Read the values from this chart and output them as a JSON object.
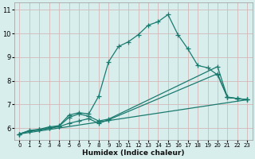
{
  "xlabel": "Humidex (Indice chaleur)",
  "bg_color": "#d8eeed",
  "grid_color": "#c8dede",
  "line_color": "#1a7a6e",
  "xlim": [
    -0.5,
    23.5
  ],
  "ylim": [
    5.5,
    11.3
  ],
  "xticks": [
    0,
    1,
    2,
    3,
    4,
    5,
    6,
    7,
    8,
    9,
    10,
    11,
    12,
    13,
    14,
    15,
    16,
    17,
    18,
    19,
    20,
    21,
    22,
    23
  ],
  "yticks": [
    6,
    7,
    8,
    9,
    10,
    11
  ],
  "series1_x": [
    0,
    1,
    2,
    3,
    4,
    5,
    6,
    7,
    8,
    9,
    10,
    11,
    12,
    13,
    14,
    15,
    16,
    17,
    18,
    19,
    20,
    21,
    22,
    23
  ],
  "series1_y": [
    5.75,
    5.9,
    5.95,
    6.05,
    6.1,
    6.55,
    6.65,
    6.6,
    7.35,
    8.8,
    9.45,
    9.65,
    9.95,
    10.35,
    10.5,
    10.8,
    9.95,
    9.35,
    8.65,
    8.55,
    8.25,
    7.3,
    7.25,
    7.2
  ],
  "series2_x": [
    0,
    1,
    2,
    3,
    4,
    5,
    6,
    7,
    8,
    9,
    20,
    21,
    22,
    23
  ],
  "series2_y": [
    5.75,
    5.88,
    5.93,
    6.0,
    6.08,
    6.45,
    6.6,
    6.5,
    6.3,
    6.38,
    8.6,
    7.3,
    7.25,
    7.2
  ],
  "series3_x": [
    0,
    1,
    2,
    3,
    4,
    5,
    6,
    7,
    8,
    9,
    20,
    21,
    22,
    23
  ],
  "series3_y": [
    5.75,
    5.87,
    5.92,
    5.99,
    6.06,
    6.2,
    6.3,
    6.4,
    6.2,
    6.35,
    8.3,
    7.3,
    7.25,
    7.2
  ],
  "series4_x": [
    0,
    23
  ],
  "series4_y": [
    5.75,
    7.2
  ]
}
